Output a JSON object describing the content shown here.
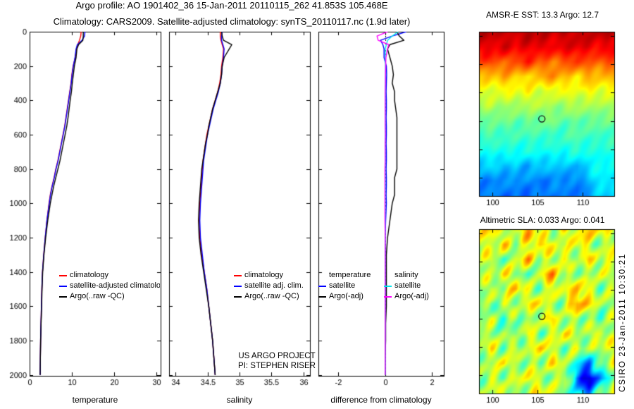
{
  "header": {
    "line1": "Argo profile: AO 1901402_36 15-Jan-2011 20110115_262 41.853S 105.468E",
    "line2": "Climatology: CARS2009. Satellite-adjusted climatology: synTS_20110117.nc (1.9d later)"
  },
  "annotations": {
    "project_line1": "US ARGO PROJECT",
    "project_line2": "PI: STEPHEN RISER"
  },
  "watermark": "CSIRO 23-Jan-2011 10:30:21",
  "legends": {
    "p1": {
      "items": [
        {
          "label": "climatology",
          "color": "#ff0000"
        },
        {
          "label": "satellite-adjusted climatology",
          "color": "#0000ff"
        },
        {
          "label": "Argo(..raw -QC)",
          "color": "#000000"
        }
      ]
    },
    "p2": {
      "items": [
        {
          "label": "climatology",
          "color": "#ff0000"
        },
        {
          "label": "satellite adj. clim.",
          "color": "#0000ff"
        },
        {
          "label": "Argo(..raw -QC)",
          "color": "#000000"
        }
      ]
    },
    "p3": {
      "col1_header": "temperature",
      "col2_header": "salinity",
      "col1": [
        {
          "label": "satellite",
          "color": "#0000ff"
        },
        {
          "label": "Argo(-adj)",
          "color": "#000000"
        }
      ],
      "col2": [
        {
          "label": "satellite",
          "color": "#00e5ee"
        },
        {
          "label": "Argo(-adj)",
          "color": "#ff00ff"
        }
      ]
    }
  },
  "chart_data": [
    {
      "type": "line",
      "xlabel": "temperature",
      "xlim": [
        0,
        31
      ],
      "xticks": [
        0,
        10,
        20,
        30
      ],
      "ylim": [
        0,
        2005
      ],
      "yticks": [
        0,
        200,
        400,
        600,
        800,
        1000,
        1200,
        1400,
        1600,
        1800,
        2000
      ],
      "show_ytick_labels": true,
      "zero_line": false,
      "depths": [
        0,
        25,
        50,
        75,
        100,
        150,
        200,
        250,
        300,
        350,
        400,
        450,
        500,
        550,
        600,
        650,
        700,
        750,
        800,
        850,
        900,
        950,
        1000,
        1100,
        1200,
        1300,
        1400,
        1500,
        1600,
        1700,
        1800,
        1900,
        2000
      ],
      "series": [
        {
          "name": "climatology",
          "color": "#ff0000",
          "values": [
            12.2,
            12.1,
            11.8,
            11.4,
            11.1,
            10.8,
            10.3,
            10.0,
            9.8,
            9.5,
            9.2,
            8.9,
            8.6,
            8.3,
            7.9,
            7.5,
            7.1,
            6.7,
            6.2,
            5.8,
            5.3,
            4.9,
            4.6,
            4.1,
            3.7,
            3.35,
            3.05,
            2.9,
            2.8,
            2.7,
            2.6,
            2.55,
            2.5
          ]
        },
        {
          "name": "satellite-adjusted climatology",
          "color": "#0000ff",
          "values": [
            13.1,
            13.0,
            12.4,
            11.3,
            11.0,
            10.75,
            10.35,
            10.05,
            9.85,
            9.55,
            9.25,
            8.95,
            8.65,
            8.35,
            7.95,
            7.55,
            7.15,
            6.75,
            6.25,
            5.85,
            5.35,
            4.95,
            4.65,
            4.1,
            3.7,
            3.35,
            3.05,
            2.9,
            2.8,
            2.7,
            2.6,
            2.55,
            2.5
          ]
        },
        {
          "name": "Argo(..raw -QC)",
          "color": "#000000",
          "values": [
            12.7,
            12.7,
            12.6,
            11.6,
            11.2,
            11.0,
            10.6,
            10.35,
            10.1,
            9.9,
            9.6,
            9.35,
            9.1,
            8.8,
            8.4,
            8.0,
            7.6,
            7.2,
            6.7,
            6.2,
            5.7,
            5.3,
            4.9,
            4.3,
            3.8,
            3.4,
            3.1,
            2.95,
            2.85,
            2.72,
            2.62,
            2.55,
            2.5
          ]
        }
      ]
    },
    {
      "type": "line",
      "xlabel": "salinity",
      "xlim": [
        33.9,
        36.1
      ],
      "xticks": [
        34,
        34.5,
        35,
        35.5,
        36
      ],
      "ylim": [
        0,
        2005
      ],
      "yticks": [
        0,
        200,
        400,
        600,
        800,
        1000,
        1200,
        1400,
        1600,
        1800,
        2000
      ],
      "show_ytick_labels": false,
      "zero_line": false,
      "depths": [
        0,
        25,
        50,
        75,
        100,
        150,
        200,
        250,
        300,
        350,
        400,
        450,
        500,
        550,
        600,
        650,
        700,
        750,
        800,
        850,
        900,
        950,
        1000,
        1100,
        1200,
        1300,
        1400,
        1500,
        1600,
        1700,
        1800,
        1900,
        2000
      ],
      "series": [
        {
          "name": "climatology",
          "color": "#ff0000",
          "values": [
            34.7,
            34.7,
            34.71,
            34.73,
            34.75,
            34.74,
            34.72,
            34.71,
            34.69,
            34.66,
            34.62,
            34.58,
            34.55,
            34.52,
            34.49,
            34.47,
            34.45,
            34.43,
            34.42,
            34.41,
            34.4,
            34.39,
            34.38,
            34.37,
            34.38,
            34.41,
            34.45,
            34.49,
            34.52,
            34.55,
            34.58,
            34.6,
            34.62
          ]
        },
        {
          "name": "satellite adj. clim.",
          "color": "#0000ff",
          "values": [
            34.73,
            34.72,
            34.72,
            34.74,
            34.76,
            34.75,
            34.73,
            34.72,
            34.7,
            34.67,
            34.63,
            34.59,
            34.56,
            34.53,
            34.5,
            34.48,
            34.46,
            34.44,
            34.43,
            34.42,
            34.41,
            34.4,
            34.39,
            34.38,
            34.39,
            34.42,
            34.45,
            34.49,
            34.52,
            34.55,
            34.58,
            34.6,
            34.62
          ]
        },
        {
          "name": "Argo(..raw -QC)",
          "color": "#000000",
          "values": [
            34.72,
            34.73,
            34.75,
            34.88,
            34.84,
            34.76,
            34.73,
            34.72,
            34.7,
            34.66,
            34.62,
            34.58,
            34.55,
            34.52,
            34.5,
            34.47,
            34.45,
            34.43,
            34.41,
            34.4,
            34.39,
            34.38,
            34.37,
            34.36,
            34.37,
            34.4,
            34.44,
            34.48,
            34.52,
            34.55,
            34.58,
            34.6,
            34.62
          ]
        }
      ]
    },
    {
      "type": "line",
      "xlabel": "difference from climatology",
      "xlim": [
        -2.85,
        2.5
      ],
      "xticks": [
        -2,
        0,
        2
      ],
      "ylim": [
        0,
        2005
      ],
      "yticks": [
        0,
        200,
        400,
        600,
        800,
        1000,
        1200,
        1400,
        1600,
        1800,
        2000
      ],
      "show_ytick_labels": false,
      "zero_line": true,
      "depths": [
        0,
        25,
        50,
        75,
        100,
        150,
        200,
        250,
        300,
        350,
        400,
        450,
        500,
        550,
        600,
        650,
        700,
        750,
        800,
        850,
        900,
        950,
        1000,
        1100,
        1200,
        1300,
        1400,
        1500,
        1600,
        1700,
        1800,
        1900,
        2000
      ],
      "series": [
        {
          "name": "temperature satellite",
          "color": "#0000ff",
          "values": [
            0.9,
            0.3,
            -0.2,
            -0.1,
            -0.05,
            -0.05,
            0.05,
            0.06,
            0.05,
            0.04,
            0.05,
            0.05,
            0.04,
            0.05,
            0.05,
            0.04,
            0.05,
            0.05,
            0.04,
            0.05,
            0.05,
            0.04,
            0.05,
            0.02,
            0.0,
            0.0,
            0.0,
            0.0,
            0.0,
            0.0,
            0.0,
            0.0,
            0.0
          ]
        },
        {
          "name": "temperature Argo(-adj)",
          "color": "#000000",
          "values": [
            0.5,
            0.6,
            0.8,
            0.2,
            0.1,
            0.2,
            0.3,
            0.35,
            0.3,
            0.4,
            0.4,
            0.45,
            0.5,
            0.5,
            0.5,
            0.5,
            0.5,
            0.5,
            0.5,
            0.4,
            0.4,
            0.4,
            0.3,
            0.2,
            0.1,
            0.05,
            0.05,
            0.05,
            0.05,
            0.02,
            0.02,
            0.0,
            0.0
          ]
        },
        {
          "name": "salinity satellite",
          "color": "#00e5ee",
          "values": [
            0.55,
            0.3,
            0.1,
            0.05,
            0.0,
            0.01,
            0.01,
            0.02,
            0.01,
            0.01,
            0.01,
            0.0,
            0.01,
            0.01,
            0.01,
            0.0,
            0.01,
            0.01,
            0.0,
            0.0,
            0.01,
            0.0,
            0.0,
            0.0,
            0.0,
            0.0,
            0.0,
            0.0,
            0.0,
            0.0,
            0.0,
            0.0,
            0.0
          ]
        },
        {
          "name": "salinity Argo(-adj)",
          "color": "#ff00ff",
          "values": [
            0.1,
            -0.35,
            -0.3,
            0.15,
            0.1,
            0.03,
            0.02,
            0.01,
            0.01,
            0.0,
            0.0,
            0.0,
            0.0,
            0.0,
            0.01,
            0.0,
            0.0,
            0.0,
            -0.01,
            -0.01,
            -0.01,
            -0.01,
            -0.01,
            -0.01,
            0.0,
            0.0,
            0.0,
            0.0,
            0.0,
            0.0,
            0.0,
            0.0,
            0.0
          ]
        }
      ]
    },
    {
      "type": "heatmap",
      "title": "AMSR-E SST: 13.3 Argo: 12.7",
      "xlim": [
        98.5,
        113.5
      ],
      "ylim": [
        -35.7,
        -47.3
      ],
      "xticks": [
        100,
        105,
        110
      ],
      "yticks": [
        -36,
        -38,
        -40,
        -42,
        -44,
        -46
      ],
      "vmin": 5.5,
      "vmax": 19.5,
      "noise_amp": 0.3,
      "marker": {
        "lon": 105.468,
        "lat": -41.853
      },
      "grid": [
        [
          18.6,
          18.7,
          18.5,
          18.6,
          18.8,
          18.6,
          18.4,
          18.7,
          18.6,
          18.5,
          18.7,
          18.6
        ],
        [
          18.2,
          18.0,
          18.3,
          17.8,
          18.1,
          18.2,
          17.9,
          18.0,
          18.2,
          18.1,
          17.8,
          18.0
        ],
        [
          16.6,
          17.1,
          16.3,
          16.9,
          17.3,
          16.5,
          16.1,
          16.7,
          17.1,
          16.4,
          16.6,
          16.9
        ],
        [
          15.2,
          14.8,
          15.5,
          15.0,
          14.6,
          15.3,
          15.8,
          15.1,
          14.7,
          15.4,
          15.0,
          15.2
        ],
        [
          14.0,
          13.6,
          14.2,
          13.8,
          14.4,
          13.5,
          13.9,
          14.1,
          13.7,
          14.3,
          13.8,
          14.0
        ],
        [
          13.0,
          13.3,
          12.8,
          13.1,
          12.9,
          13.4,
          12.7,
          13.0,
          13.2,
          12.8,
          13.1,
          12.9
        ],
        [
          12.2,
          12.0,
          12.4,
          11.9,
          12.3,
          12.1,
          12.5,
          11.8,
          12.2,
          12.0,
          12.3,
          12.1
        ],
        [
          11.6,
          11.9,
          11.4,
          11.7,
          11.5,
          11.8,
          11.3,
          11.6,
          11.9,
          11.5,
          11.7,
          11.4
        ],
        [
          11.1,
          10.8,
          11.3,
          10.9,
          11.2,
          10.7,
          11.1,
          11.0,
          11.4,
          10.9,
          11.1,
          11.3
        ],
        [
          10.0,
          10.4,
          9.7,
          10.2,
          9.5,
          10.3,
          9.8,
          10.1,
          9.6,
          10.6,
          10.9,
          10.6
        ],
        [
          9.2,
          8.9,
          9.5,
          9.0,
          9.4,
          8.8,
          9.3,
          9.1,
          9.0,
          9.8,
          10.8,
          10.4
        ],
        [
          8.8,
          9.2,
          8.6,
          9.0,
          8.5,
          9.1,
          8.7,
          9.3,
          8.6,
          9.4,
          10.2,
          10.0
        ]
      ]
    },
    {
      "type": "heatmap",
      "title": "Altimetric SLA: 0.033 Argo: 0.041",
      "xlim": [
        98.5,
        113.5
      ],
      "ylim": [
        -35.7,
        -47.3
      ],
      "xticks": [
        100,
        105,
        110
      ],
      "yticks": [
        -36,
        -38,
        -40,
        -42,
        -44,
        -46
      ],
      "vmin": -0.4,
      "vmax": 0.4,
      "noise_amp": 0.055,
      "marker": {
        "lon": 105.468,
        "lat": -41.853
      },
      "grid": [
        [
          0.05,
          0.15,
          0.02,
          0.1,
          0.18,
          0.05,
          0.0,
          0.12,
          0.08,
          0.15,
          0.1,
          0.05
        ],
        [
          0.1,
          0.05,
          0.12,
          0.0,
          0.08,
          0.15,
          0.1,
          0.02,
          0.12,
          0.06,
          0.0,
          0.08
        ],
        [
          0.0,
          0.1,
          -0.05,
          0.08,
          0.15,
          0.0,
          0.05,
          0.1,
          0.0,
          0.12,
          0.05,
          0.1
        ],
        [
          0.08,
          0.0,
          0.1,
          0.05,
          -0.05,
          0.08,
          0.18,
          0.0,
          0.05,
          0.0,
          0.08,
          0.0
        ],
        [
          0.0,
          0.08,
          0.0,
          0.15,
          0.05,
          0.0,
          0.1,
          0.05,
          0.15,
          0.08,
          0.0,
          0.05
        ],
        [
          0.05,
          -0.05,
          0.1,
          0.0,
          0.08,
          0.12,
          0.0,
          0.05,
          0.2,
          0.1,
          0.05,
          0.0
        ],
        [
          0.0,
          0.05,
          -0.08,
          0.05,
          0.0,
          0.05,
          0.1,
          0.0,
          0.05,
          0.0,
          -0.05,
          0.05
        ],
        [
          0.1,
          0.0,
          0.05,
          -0.05,
          0.1,
          0.0,
          0.05,
          0.12,
          0.0,
          0.05,
          0.1,
          0.0
        ],
        [
          0.0,
          0.1,
          0.0,
          0.08,
          0.0,
          0.15,
          0.05,
          0.0,
          0.08,
          0.0,
          0.05,
          0.1
        ],
        [
          0.05,
          0.0,
          0.12,
          0.0,
          0.05,
          0.0,
          0.1,
          0.05,
          -0.1,
          -0.2,
          0.0,
          0.05
        ],
        [
          0.0,
          0.08,
          0.0,
          0.05,
          0.1,
          0.05,
          0.0,
          0.08,
          -0.25,
          -0.35,
          -0.15,
          0.0
        ],
        [
          0.05,
          0.0,
          0.1,
          0.0,
          0.05,
          0.1,
          0.05,
          0.0,
          -0.1,
          -0.2,
          0.0,
          0.08
        ]
      ]
    }
  ]
}
